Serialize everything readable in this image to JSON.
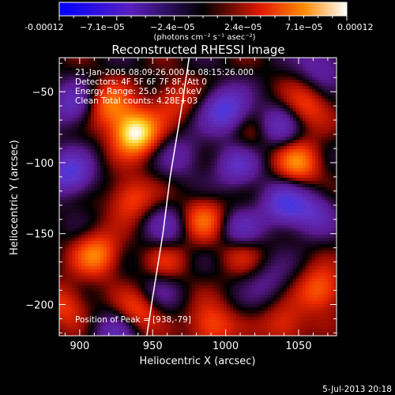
{
  "colorbar": {
    "tick_labels": [
      "-0.00012",
      "−7.1e−05",
      "−2.4e−05",
      "2.4e−05",
      "7.1e−05",
      "0.00012"
    ],
    "unit_label": "(photons cm⁻² s⁻¹ asec⁻²)",
    "range": [
      -0.00012,
      0.00012
    ]
  },
  "chart_data": {
    "type": "heatmap",
    "title": "Reconstructed RHESSI Image",
    "xlabel": "Heliocentric X (arcsec)",
    "ylabel": "Heliocentric Y (arcsec)",
    "xlim": [
      886,
      1076
    ],
    "ylim": [
      -222,
      -26
    ],
    "xticks": [
      900,
      950,
      1000,
      1050
    ],
    "yticks": [
      -50,
      -100,
      -150,
      -200
    ],
    "info_lines": [
      "21-Jan-2005 08:09:26.000 to 08:15:26.000",
      "Detectors: 4F 5F 6F 7F 8F, Att 0",
      "Energy Range: 25.0 - 50.0 keV",
      "Clean    Total counts: 4.28E+03"
    ],
    "peak_label": "Position of Peak = [938,-79]",
    "peak": [
      938,
      -79
    ],
    "sources": [
      {
        "x": 938,
        "y": -79,
        "v": 1.0
      },
      {
        "x": 920,
        "y": -60,
        "v": 0.55
      },
      {
        "x": 965,
        "y": -55,
        "v": 0.35
      },
      {
        "x": 935,
        "y": -125,
        "v": 0.45
      },
      {
        "x": 912,
        "y": -165,
        "v": 0.6
      },
      {
        "x": 940,
        "y": -205,
        "v": 0.45
      },
      {
        "x": 990,
        "y": -215,
        "v": 0.5
      },
      {
        "x": 985,
        "y": -140,
        "v": 0.5
      },
      {
        "x": 1010,
        "y": -160,
        "v": 0.45
      },
      {
        "x": 1050,
        "y": -100,
        "v": 0.6
      },
      {
        "x": 1055,
        "y": -60,
        "v": 0.4
      },
      {
        "x": 1065,
        "y": -190,
        "v": 0.55
      },
      {
        "x": 1040,
        "y": -215,
        "v": 0.4
      },
      {
        "x": 890,
        "y": -200,
        "v": 0.4
      },
      {
        "x": 960,
        "y": -170,
        "v": 0.3
      },
      {
        "x": 1020,
        "y": -80,
        "v": 0.25
      },
      {
        "x": 895,
        "y": -60,
        "v": -0.5
      },
      {
        "x": 893,
        "y": -108,
        "v": -0.7
      },
      {
        "x": 1000,
        "y": -63,
        "v": -0.75
      },
      {
        "x": 1035,
        "y": -75,
        "v": -0.5
      },
      {
        "x": 1008,
        "y": -103,
        "v": -0.5
      },
      {
        "x": 1040,
        "y": -130,
        "v": -0.65
      },
      {
        "x": 1060,
        "y": -135,
        "v": -0.45
      },
      {
        "x": 1010,
        "y": -150,
        "v": -0.6
      },
      {
        "x": 960,
        "y": -145,
        "v": -0.35
      },
      {
        "x": 925,
        "y": -220,
        "v": -0.4
      },
      {
        "x": 1065,
        "y": -30,
        "v": -0.4
      },
      {
        "x": 970,
        "y": -95,
        "v": -0.3
      },
      {
        "x": 955,
        "y": -190,
        "v": -0.25
      },
      {
        "x": 1030,
        "y": -185,
        "v": -0.25
      }
    ],
    "limb": [
      [
        975,
        -26
      ],
      [
        970,
        -60
      ],
      [
        962,
        -110
      ],
      [
        957,
        -150
      ],
      [
        950,
        -195
      ],
      [
        946,
        -222
      ]
    ]
  },
  "footer": {
    "timestamp": "5-Jul-2013 20:18"
  }
}
